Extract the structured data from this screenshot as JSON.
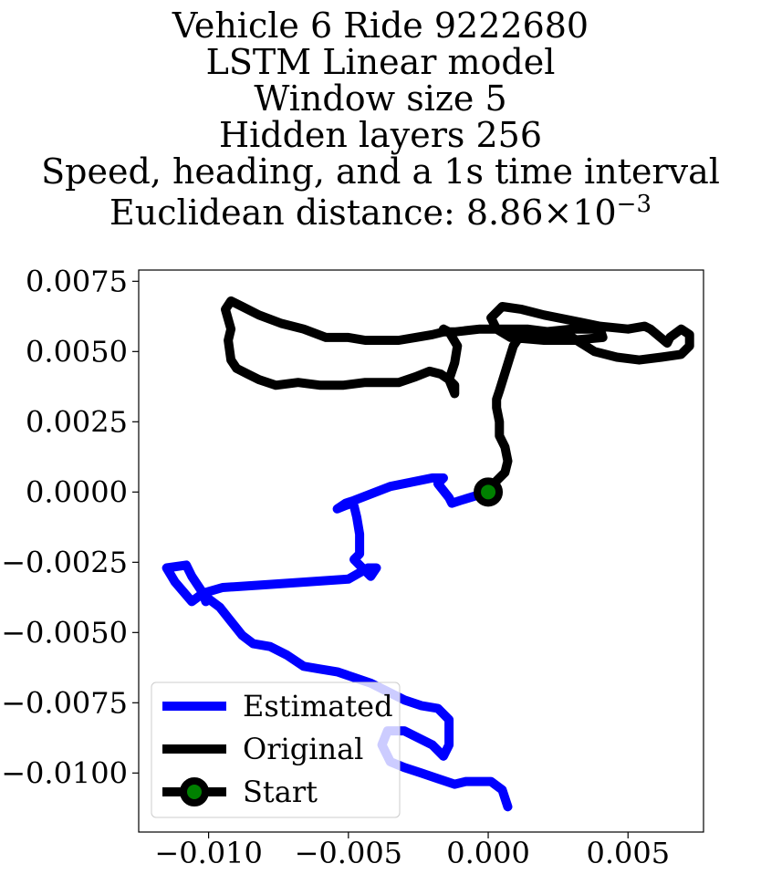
{
  "chart_data": {
    "type": "line",
    "title_lines": [
      "Vehicle 6 Ride 9222680",
      "LSTM Linear model",
      "Window size 5",
      "Hidden layers 256",
      "Speed, heading, and a 1s time interval"
    ],
    "distance_prefix": "Euclidean distance: 8.86",
    "distance_times": "×",
    "distance_base": "10",
    "distance_exp": "−3",
    "xlabel": "",
    "ylabel": "",
    "xlim": [
      -0.0125,
      0.0077
    ],
    "ylim": [
      -0.0121,
      0.0079
    ],
    "x_ticks": [
      {
        "v": -0.01,
        "label": "−0.010"
      },
      {
        "v": -0.005,
        "label": "−0.005"
      },
      {
        "v": 0.0,
        "label": "0.000"
      },
      {
        "v": 0.005,
        "label": "0.005"
      }
    ],
    "y_ticks": [
      {
        "v": 0.0075,
        "label": "0.0075"
      },
      {
        "v": 0.005,
        "label": "0.0050"
      },
      {
        "v": 0.0025,
        "label": "0.0025"
      },
      {
        "v": 0.0,
        "label": "0.0000"
      },
      {
        "v": -0.0025,
        "label": "−0.0025"
      },
      {
        "v": -0.005,
        "label": "−0.0050"
      },
      {
        "v": -0.0075,
        "label": "−0.0075"
      },
      {
        "v": -0.01,
        "label": "−0.0100"
      }
    ],
    "grid": false,
    "legend_position": "lower-left",
    "series": [
      {
        "name": "Estimated",
        "color": "#0000ff",
        "x": [
          0.0,
          -0.001,
          -0.0013,
          -0.0014,
          -0.0018,
          -0.0016,
          -0.002,
          -0.0035,
          -0.0048,
          -0.0051,
          -0.0054,
          -0.0049,
          -0.0048,
          -0.0047,
          -0.0046,
          -0.0046,
          -0.0048,
          -0.0044,
          -0.0042,
          -0.004,
          -0.0043,
          -0.005,
          -0.0065,
          -0.008,
          -0.0095,
          -0.0102,
          -0.0106,
          -0.0112,
          -0.0115,
          -0.0108,
          -0.0106,
          -0.0102,
          -0.0101,
          -0.01,
          -0.0096,
          -0.0092,
          -0.0088,
          -0.0084,
          -0.0078,
          -0.0072,
          -0.0066,
          -0.006,
          -0.0054,
          -0.0048,
          -0.0042,
          -0.0036,
          -0.003,
          -0.0024,
          -0.0018,
          -0.0014,
          -0.0014,
          -0.0016,
          -0.002,
          -0.003,
          -0.0036,
          -0.0038,
          -0.0035,
          -0.003,
          -0.0024,
          -0.0018,
          -0.0012,
          -0.0008,
          -0.0004,
          0.0001,
          0.0005,
          0.0007
        ],
        "y": [
          0.0,
          -0.0003,
          -0.0004,
          -0.0002,
          0.0003,
          0.0005,
          0.0005,
          0.0002,
          -0.0003,
          -0.0004,
          -0.0006,
          -0.0004,
          -0.0005,
          -0.0009,
          -0.0015,
          -0.0022,
          -0.0024,
          -0.0028,
          -0.003,
          -0.0027,
          -0.0027,
          -0.0031,
          -0.0032,
          -0.0033,
          -0.0034,
          -0.0036,
          -0.0039,
          -0.0032,
          -0.0027,
          -0.0026,
          -0.003,
          -0.0036,
          -0.0039,
          -0.0038,
          -0.0041,
          -0.0046,
          -0.0051,
          -0.0054,
          -0.0055,
          -0.0058,
          -0.0062,
          -0.0063,
          -0.0064,
          -0.0066,
          -0.0068,
          -0.0071,
          -0.0074,
          -0.0076,
          -0.0077,
          -0.0081,
          -0.009,
          -0.0094,
          -0.009,
          -0.0085,
          -0.0085,
          -0.009,
          -0.0096,
          -0.0098,
          -0.01,
          -0.0102,
          -0.0104,
          -0.0103,
          -0.0103,
          -0.0103,
          -0.0106,
          -0.0112
        ]
      },
      {
        "name": "Original",
        "color": "#000000",
        "x": [
          0.0,
          0.0003,
          0.0006,
          0.0007,
          0.0006,
          0.0004,
          0.0004,
          0.0003,
          0.0003,
          0.0004,
          0.0009,
          0.0013,
          0.0012,
          0.0013,
          0.0015,
          0.002,
          0.003,
          0.004,
          0.0041,
          0.003,
          0.002,
          0.0008,
          0.0003,
          0.0001,
          0.0005,
          0.0012,
          0.002,
          0.003,
          0.004,
          0.005,
          0.0056,
          0.0058,
          0.0064,
          0.0065,
          0.0069,
          0.0072,
          0.0072,
          0.0069,
          0.0062,
          0.0054,
          0.0046,
          0.0038,
          0.003,
          0.0022,
          0.0014,
          0.0006,
          -0.0003,
          -0.0012,
          -0.0016,
          -0.002,
          -0.0026,
          -0.0032,
          -0.0038,
          -0.0044,
          -0.005,
          -0.0058,
          -0.0066,
          -0.0074,
          -0.0082,
          -0.0088,
          -0.0092,
          -0.0094,
          -0.0092,
          -0.0093,
          -0.0092,
          -0.009,
          -0.0086,
          -0.0082,
          -0.0076,
          -0.0068,
          -0.006,
          -0.0052,
          -0.0044,
          -0.0038,
          -0.0032,
          -0.0026,
          -0.0021,
          -0.0017,
          -0.0014,
          -0.0012,
          -0.0012,
          -0.0014,
          -0.0012,
          -0.0011,
          -0.0014,
          -0.0016
        ],
        "y": [
          0.0,
          0.0004,
          0.0007,
          0.0011,
          0.0016,
          0.002,
          0.0025,
          0.003,
          0.0033,
          0.0036,
          0.0052,
          0.0058,
          0.0058,
          0.0058,
          0.0057,
          0.0057,
          0.0058,
          0.0058,
          0.0055,
          0.0054,
          0.0054,
          0.0055,
          0.0058,
          0.0062,
          0.0066,
          0.0065,
          0.0063,
          0.0061,
          0.0059,
          0.0058,
          0.0059,
          0.0058,
          0.0053,
          0.0055,
          0.0058,
          0.0056,
          0.0052,
          0.0049,
          0.0048,
          0.0047,
          0.0048,
          0.005,
          0.0055,
          0.0057,
          0.0058,
          0.0058,
          0.0058,
          0.0057,
          0.0057,
          0.0056,
          0.0055,
          0.0054,
          0.0054,
          0.0054,
          0.0055,
          0.0055,
          0.0058,
          0.006,
          0.0063,
          0.0066,
          0.0068,
          0.0065,
          0.0058,
          0.0054,
          0.0047,
          0.0044,
          0.0042,
          0.004,
          0.0038,
          0.0039,
          0.0038,
          0.0038,
          0.0039,
          0.0039,
          0.0039,
          0.0041,
          0.0043,
          0.0042,
          0.004,
          0.0038,
          0.0035,
          0.004,
          0.0046,
          0.0052,
          0.0057,
          0.0058
        ]
      },
      {
        "name": "Start",
        "color": "#008000",
        "x": [
          0.0
        ],
        "y": [
          0.0
        ]
      }
    ]
  }
}
